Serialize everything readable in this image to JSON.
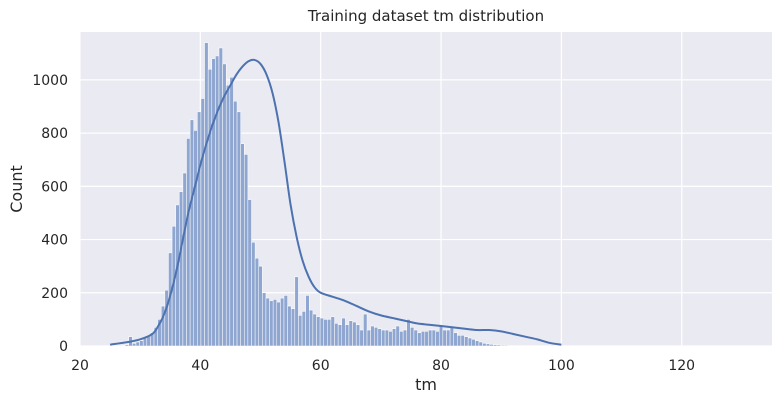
{
  "chart_data": {
    "type": "bar",
    "title": "Training dataset tm distribution",
    "xlabel": "tm",
    "ylabel": "Count",
    "xlim": [
      20,
      135
    ],
    "ylim": [
      0,
      1180
    ],
    "xticks": [
      20,
      40,
      60,
      80,
      100,
      120
    ],
    "yticks": [
      0,
      200,
      400,
      600,
      800,
      1000
    ],
    "grid": true,
    "colors": {
      "bar": "#8fa6d1",
      "kde": "#4c72b0",
      "background": "#eaeaf2",
      "grid": "#ffffff"
    },
    "bins": {
      "start": 27.5,
      "width": 0.6,
      "counts": [
        5,
        35,
        10,
        15,
        20,
        30,
        40,
        50,
        70,
        100,
        150,
        210,
        350,
        450,
        530,
        580,
        650,
        780,
        850,
        810,
        880,
        930,
        1140,
        1040,
        1080,
        1090,
        1120,
        1060,
        980,
        1010,
        920,
        880,
        760,
        720,
        550,
        390,
        330,
        300,
        200,
        180,
        170,
        175,
        165,
        180,
        190,
        150,
        140,
        260,
        115,
        130,
        190,
        135,
        120,
        110,
        105,
        100,
        100,
        110,
        85,
        80,
        105,
        80,
        95,
        90,
        80,
        60,
        120,
        60,
        75,
        70,
        65,
        60,
        60,
        55,
        65,
        75,
        55,
        60,
        100,
        70,
        60,
        50,
        55,
        55,
        60,
        60,
        55,
        75,
        60,
        60,
        70,
        50,
        40,
        40,
        35,
        30,
        25,
        20,
        15,
        10,
        8,
        6,
        5,
        4,
        3,
        3,
        2,
        2,
        1,
        1
      ]
    },
    "kde": {
      "x": [
        25,
        28,
        30,
        32,
        33,
        34,
        35,
        36,
        37,
        38,
        39,
        40,
        41,
        42,
        43,
        44,
        45,
        46,
        47,
        48,
        49,
        50,
        51,
        52,
        53,
        54,
        55,
        56,
        57,
        58,
        59,
        60,
        62,
        64,
        66,
        68,
        70,
        72,
        74,
        76,
        78,
        80,
        82,
        84,
        86,
        88,
        90,
        92,
        94,
        96,
        98,
        100
      ],
      "y": [
        5,
        15,
        25,
        45,
        75,
        120,
        190,
        280,
        390,
        500,
        590,
        680,
        760,
        830,
        890,
        940,
        980,
        1020,
        1050,
        1070,
        1075,
        1060,
        1020,
        950,
        840,
        690,
        530,
        410,
        320,
        260,
        220,
        200,
        185,
        170,
        150,
        130,
        115,
        105,
        95,
        85,
        80,
        75,
        70,
        65,
        60,
        60,
        55,
        45,
        35,
        25,
        12,
        5
      ]
    }
  }
}
